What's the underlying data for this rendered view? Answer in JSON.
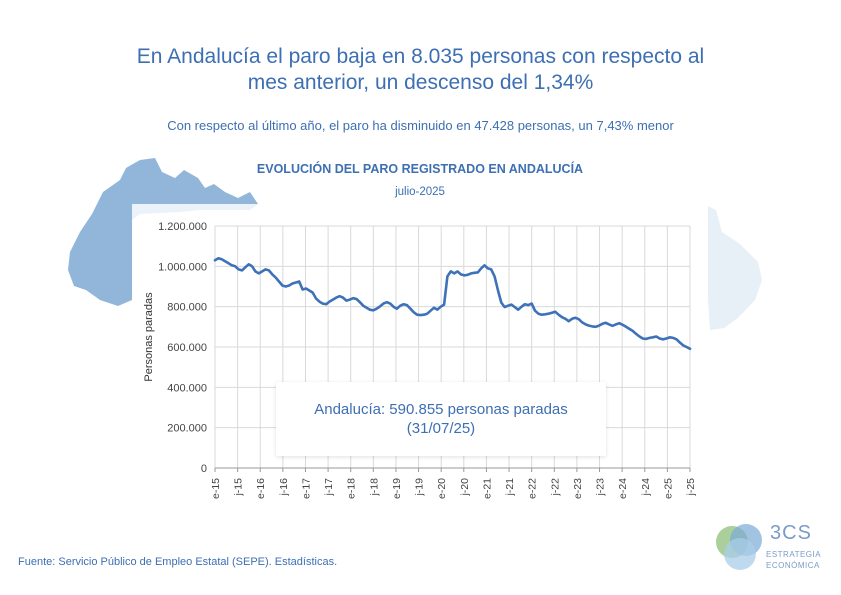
{
  "headline": {
    "line1": "En Andalucía el paro baja en 8.035 personas con respecto al",
    "line2": "mes anterior, un descenso del 1,34%"
  },
  "subheadline": "Con respecto al último año, el paro ha disminuido en 47.428 personas, un 7,43% menor",
  "callout": {
    "line1": "Andalucía: 590.855 personas paradas",
    "line2": "(31/07/25)"
  },
  "source": "Fuente: Servicio Público de Empleo Estatal (SEPE). Estadísticas.",
  "logo": {
    "mark": "3CS",
    "line1": "ESTRATEGIA",
    "line2": "ECONÓMICA"
  },
  "colors": {
    "accent": "#3d6fb3",
    "line": "#3e72b8",
    "map": "#7fa9d3",
    "grid": "#d9d9d9"
  },
  "chart_data": {
    "type": "line",
    "title": "EVOLUCIÓN DEL PARO REGISTRADO EN ANDALUCÍA",
    "subtitle": "julio-2025",
    "xlabel": "",
    "ylabel": "Personas paradas",
    "ylim": [
      0,
      1200000
    ],
    "yticks": [
      "0",
      "200.000",
      "400.000",
      "600.000",
      "800.000",
      "1.000.000",
      "1.200.000"
    ],
    "grid": true,
    "legend": "none",
    "xticks": [
      "e-15",
      "j-15",
      "e-16",
      "j-16",
      "e-17",
      "j-17",
      "e-18",
      "j-18",
      "e-19",
      "j-19",
      "e-20",
      "j-20",
      "e-21",
      "j-21",
      "e-22",
      "j-22",
      "e-23",
      "j-23",
      "e-24",
      "j-24",
      "e-25",
      "j-25"
    ],
    "series": [
      {
        "values": [
          1030000,
          1040000,
          1035000,
          1025000,
          1015000,
          1005000,
          1000000,
          985000,
          980000,
          995000,
          1010000,
          1000000,
          975000,
          965000,
          975000,
          985000,
          980000,
          960000,
          945000,
          925000,
          905000,
          900000,
          905000,
          915000,
          920000,
          925000,
          885000,
          890000,
          880000,
          870000,
          840000,
          825000,
          815000,
          812000,
          825000,
          835000,
          845000,
          852000,
          845000,
          830000,
          835000,
          842000,
          838000,
          822000,
          805000,
          795000,
          785000,
          782000,
          790000,
          802000,
          815000,
          822000,
          815000,
          800000,
          790000,
          805000,
          812000,
          808000,
          790000,
          772000,
          760000,
          758000,
          760000,
          765000,
          780000,
          795000,
          785000,
          800000,
          810000,
          950000,
          975000,
          965000,
          975000,
          960000,
          955000,
          958000,
          965000,
          968000,
          970000,
          990000,
          1005000,
          990000,
          985000,
          950000,
          880000,
          820000,
          798000,
          805000,
          810000,
          798000,
          785000,
          800000,
          812000,
          808000,
          815000,
          780000,
          765000,
          760000,
          762000,
          765000,
          770000,
          775000,
          760000,
          748000,
          740000,
          728000,
          740000,
          745000,
          738000,
          722000,
          712000,
          706000,
          702000,
          700000,
          706000,
          715000,
          720000,
          712000,
          705000,
          712000,
          718000,
          710000,
          700000,
          690000,
          680000,
          665000,
          652000,
          642000,
          640000,
          645000,
          648000,
          652000,
          642000,
          638000,
          642000,
          648000,
          645000,
          638000,
          622000,
          608000,
          600000,
          590855
        ]
      }
    ]
  }
}
